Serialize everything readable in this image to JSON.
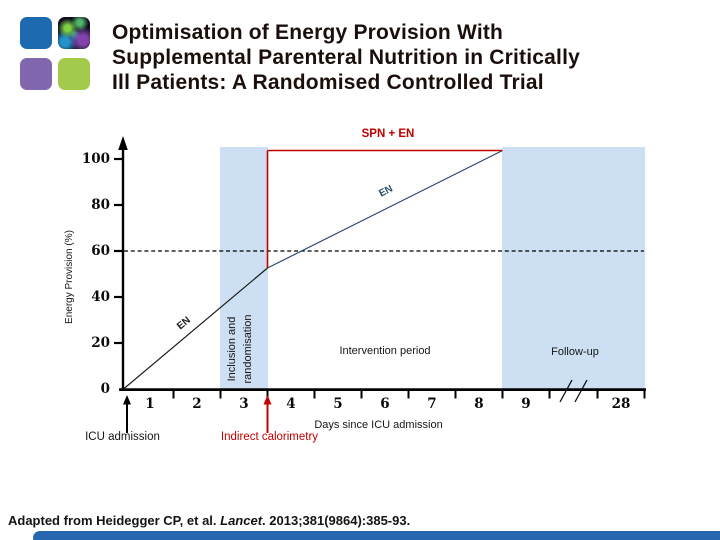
{
  "slide": {
    "title_lines": [
      "Optimisation of Energy Provision With",
      "Supplemental Parenteral Nutrition in Critically",
      "Ill Patients: A Randomised Controlled Trial"
    ],
    "citation": {
      "prefix": "Adapted from Heidegger CP, et al. ",
      "journal": "Lancet",
      "suffix": ". 2013;381(9864):385-93."
    }
  },
  "labels": {
    "spn_en": "SPN + EN",
    "en": "EN",
    "inclusion_line1": "Inclusion and",
    "inclusion_line2": "randomisation",
    "intervention": "Intervention period",
    "follow_up": "Follow-up",
    "days_axis": "Days since ICU admission",
    "icu_admission": "ICU admission",
    "indirect_calorimetry": "Indirect calorimetry",
    "energy_axis": "Energy Provision (%)"
  },
  "colors": {
    "accent_red": "#c10000",
    "band_blue": "#cddff2",
    "bottom_bar_blue": "#2767b0",
    "en_line_navy": "#2e4a66",
    "logo_blue": "#1e6ab0",
    "logo_purple": "#8067ae",
    "logo_green": "#a4ca4c"
  },
  "chart_data": {
    "type": "line",
    "title": "",
    "xlabel": "Days since ICU admission",
    "ylabel": "Energy Provision (%)",
    "x_ticks": [
      1,
      2,
      3,
      4,
      5,
      6,
      7,
      8,
      9,
      28
    ],
    "y_ticks": [
      0,
      20,
      40,
      60,
      80,
      100
    ],
    "ylim": [
      0,
      105
    ],
    "xaxis_break_between": [
      9,
      28
    ],
    "reference_line_y": 60,
    "grid": false,
    "series": [
      {
        "name": "EN",
        "x": [
          0,
          3.5,
          8.5
        ],
        "y": [
          0,
          53,
          103
        ]
      },
      {
        "name": "SPN + EN",
        "x": [
          3.5,
          3.5,
          8.5
        ],
        "y": [
          53,
          103,
          103
        ]
      }
    ],
    "regions": [
      {
        "label": "Inclusion and randomisation",
        "x_start": 2.5,
        "x_end": 3.5
      },
      {
        "label": "Intervention period",
        "x_start": 3.5,
        "x_end": 8.5
      },
      {
        "label": "Follow-up",
        "x_start": 8.5,
        "x_end": 28
      }
    ],
    "annotations": [
      {
        "label": "ICU admission",
        "x": 0,
        "color": "#000000"
      },
      {
        "label": "Indirect calorimetry",
        "x": 3.5,
        "color": "#c10000"
      }
    ]
  }
}
